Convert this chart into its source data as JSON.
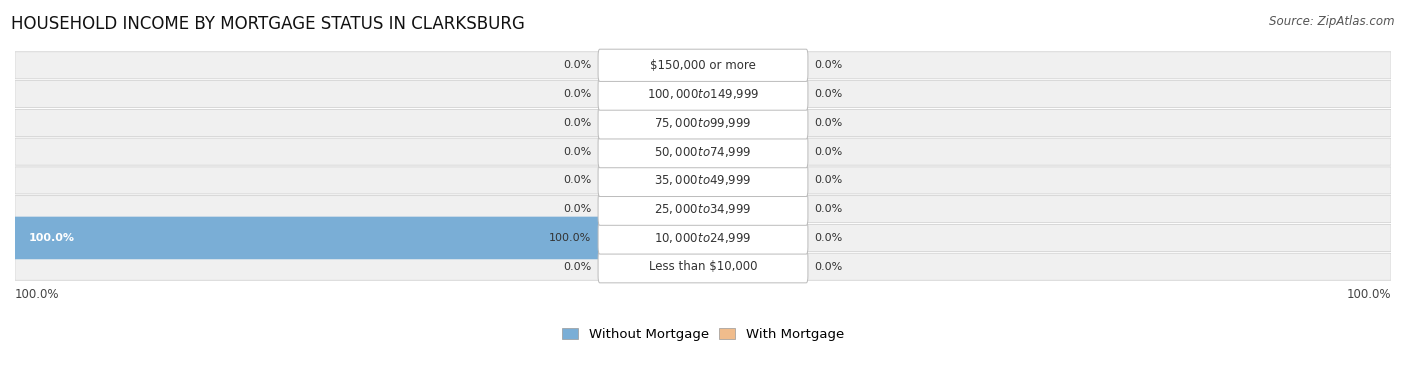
{
  "title": "HOUSEHOLD INCOME BY MORTGAGE STATUS IN CLARKSBURG",
  "source": "Source: ZipAtlas.com",
  "categories": [
    "Less than $10,000",
    "$10,000 to $24,999",
    "$25,000 to $34,999",
    "$35,000 to $49,999",
    "$50,000 to $74,999",
    "$75,000 to $99,999",
    "$100,000 to $149,999",
    "$150,000 or more"
  ],
  "without_mortgage": [
    0.0,
    100.0,
    0.0,
    0.0,
    0.0,
    0.0,
    0.0,
    0.0
  ],
  "with_mortgage": [
    0.0,
    0.0,
    0.0,
    0.0,
    0.0,
    0.0,
    0.0,
    0.0
  ],
  "without_mortgage_color": "#7aaed6",
  "with_mortgage_color": "#f0bc8c",
  "label_color": "#333333",
  "title_fontsize": 12,
  "source_fontsize": 8.5,
  "legend_fontsize": 9.5,
  "axis_label_fontsize": 8.5,
  "bar_label_fontsize": 8,
  "category_fontsize": 8.5,
  "left_axis_label": "100.0%",
  "right_axis_label": "100.0%",
  "background_color": "#ffffff",
  "row_bg_color": "#f0f0f0",
  "row_border_color": "#cccccc"
}
